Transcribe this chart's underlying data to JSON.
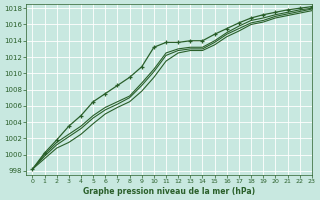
{
  "xlabel": "Graphe pression niveau de la mer (hPa)",
  "xlim": [
    -0.5,
    23
  ],
  "ylim": [
    997.5,
    1018.5
  ],
  "yticks": [
    998,
    1000,
    1002,
    1004,
    1006,
    1008,
    1010,
    1012,
    1014,
    1016,
    1018
  ],
  "xticks": [
    0,
    1,
    2,
    3,
    4,
    5,
    6,
    7,
    8,
    9,
    10,
    11,
    12,
    13,
    14,
    15,
    16,
    17,
    18,
    19,
    20,
    21,
    22,
    23
  ],
  "bg_color": "#c8e8e0",
  "grid_color": "#ffffff",
  "line_color": "#2a5f2a",
  "line_top": [
    998.2,
    1000.2,
    1001.8,
    1003.5,
    1004.8,
    1006.5,
    1007.5,
    1008.5,
    1009.5,
    1010.8,
    1013.2,
    1013.8,
    1013.8,
    1014.0,
    1014.0,
    1014.8,
    1015.5,
    1016.2,
    1016.8,
    1017.2,
    1017.5,
    1017.8,
    1018.0,
    1018.2
  ],
  "line_mid1": [
    998.2,
    1000.0,
    1001.5,
    1002.5,
    1003.5,
    1004.8,
    1005.8,
    1006.5,
    1007.2,
    1008.8,
    1010.5,
    1012.5,
    1013.0,
    1013.2,
    1013.2,
    1014.0,
    1015.0,
    1015.8,
    1016.5,
    1016.8,
    1017.2,
    1017.5,
    1017.8,
    1018.0
  ],
  "line_mid2": [
    998.2,
    999.8,
    1001.2,
    1002.2,
    1003.2,
    1004.5,
    1005.5,
    1006.2,
    1007.0,
    1008.5,
    1010.2,
    1012.2,
    1012.8,
    1013.0,
    1013.0,
    1013.8,
    1014.8,
    1015.5,
    1016.2,
    1016.5,
    1017.0,
    1017.3,
    1017.6,
    1017.9
  ],
  "line_bot": [
    998.2,
    999.5,
    1000.8,
    1001.5,
    1002.5,
    1003.8,
    1005.0,
    1005.8,
    1006.5,
    1007.8,
    1009.5,
    1011.5,
    1012.5,
    1012.8,
    1012.8,
    1013.5,
    1014.5,
    1015.2,
    1016.0,
    1016.3,
    1016.8,
    1017.1,
    1017.4,
    1017.7
  ]
}
